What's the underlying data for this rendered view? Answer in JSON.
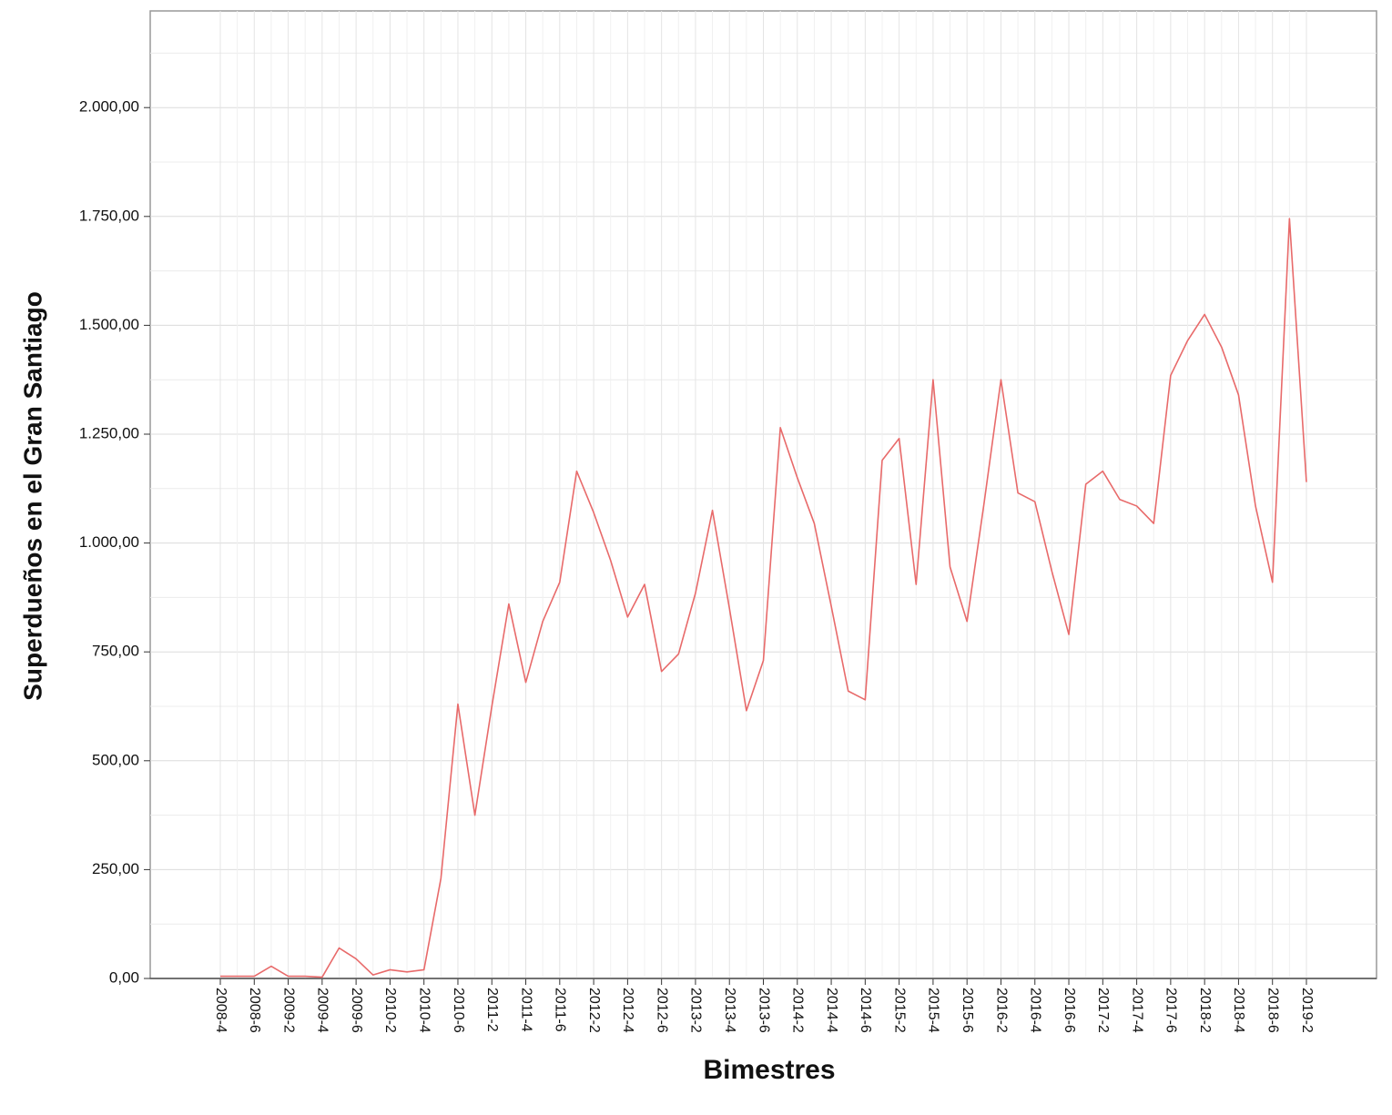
{
  "chart_data": {
    "type": "line",
    "x_label": "Bimestres",
    "y_label": "Superdueños en el Gran Santiago",
    "categories": [
      "2008-4",
      null,
      "2008-6",
      null,
      "2009-2",
      null,
      "2009-4",
      null,
      "2009-6",
      null,
      "2010-2",
      null,
      "2010-4",
      null,
      "2010-6",
      null,
      "2011-2",
      null,
      "2011-4",
      null,
      "2011-6",
      null,
      "2012-2",
      null,
      "2012-4",
      null,
      "2012-6",
      null,
      "2013-2",
      null,
      "2013-4",
      null,
      "2013-6",
      null,
      "2014-2",
      null,
      "2014-4",
      null,
      "2014-6",
      null,
      "2015-2",
      null,
      "2015-4",
      null,
      "2015-6",
      null,
      "2016-2",
      null,
      "2016-4",
      null,
      "2016-6",
      null,
      "2017-2",
      null,
      "2017-4",
      null,
      "2017-6",
      null,
      "2018-2",
      null,
      "2018-4",
      null,
      "2018-6",
      null,
      "2019-2"
    ],
    "series": [
      {
        "color": "#e86a6a",
        "values": [
          5,
          5,
          5,
          28,
          5,
          5,
          3,
          70,
          45,
          8,
          20,
          15,
          20,
          230,
          630,
          375,
          625,
          860,
          680,
          820,
          910,
          1165,
          1070,
          960,
          830,
          905,
          705,
          745,
          885,
          1075,
          850,
          615,
          730,
          1265,
          1150,
          1045,
          855,
          660,
          640,
          1190,
          1240,
          905,
          1375,
          945,
          820,
          1090,
          1375,
          1115,
          1095,
          935,
          790,
          1135,
          1165,
          1100,
          1085,
          1045,
          1385,
          1465,
          1525,
          1450,
          1340,
          1085,
          910,
          1745,
          1140
        ]
      }
    ],
    "ylim": [
      0,
      2222
    ],
    "yticks": [
      {
        "value": 0,
        "label": "0,00"
      },
      {
        "value": 250,
        "label": "250,00"
      },
      {
        "value": 500,
        "label": "500,00"
      },
      {
        "value": 750,
        "label": "750,00"
      },
      {
        "value": 1000,
        "label": "1.000,00"
      },
      {
        "value": 1250,
        "label": "1.250,00"
      },
      {
        "value": 1500,
        "label": "1.500,00"
      },
      {
        "value": 1750,
        "label": "1.750,00"
      },
      {
        "value": 2000,
        "label": "2.000,00"
      }
    ],
    "grid": true
  }
}
